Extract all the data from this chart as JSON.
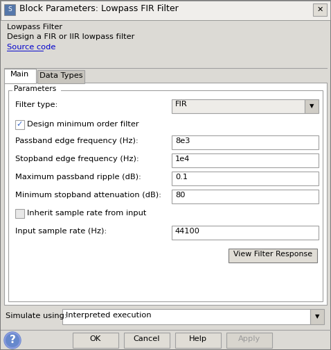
{
  "title_bar_text": "Block Parameters: Lowpass FIR Filter",
  "dialog_bg": "#dcdad5",
  "content_bg": "#f0eeeb",
  "white": "#ffffff",
  "section_title": "Lowpass Filter",
  "section_desc": "Design a FIR or IIR lowpass filter",
  "source_code_link": "Source code",
  "tabs": [
    "Main",
    "Data Types"
  ],
  "params_label": "Parameters",
  "filter_type_label": "Filter type:",
  "filter_type_value": "FIR",
  "checkbox1_label": "Design minimum order filter",
  "checkbox1_checked": true,
  "row_labels": [
    "Passband edge frequency (Hz):",
    "Stopband edge frequency (Hz):",
    "Maximum passband ripple (dB):",
    "Minimum stopband attenuation (dB):",
    "Input sample rate (Hz):"
  ],
  "row_values": [
    "8e3",
    "1e4",
    "0.1",
    "80",
    "44100"
  ],
  "checkbox2_label": "Inherit sample rate from input",
  "checkbox2_checked": false,
  "view_filter_btn": "View Filter Response",
  "simulate_label": "Simulate using:",
  "simulate_value": "Interpreted execution",
  "buttons": [
    "OK",
    "Cancel",
    "Help",
    "Apply"
  ],
  "apply_disabled": true,
  "border_dark": "#7a7a7a",
  "border_mid": "#a0a0a0",
  "border_light": "#c8c8c8",
  "input_bg": "#ffffff",
  "tab_active_bg": "#ffffff",
  "tab_inactive_bg": "#c8c5be",
  "link_color": "#0000cc",
  "text_color": "#000000",
  "disabled_text": "#9a9a9a",
  "check_color": "#3366cc",
  "btn_bg": "#e0ddd6",
  "dropdown_arrow_bg": "#d0cdc6",
  "title_bg": "#f0eeeb",
  "fs": 8.2,
  "fs_title": 9.0
}
